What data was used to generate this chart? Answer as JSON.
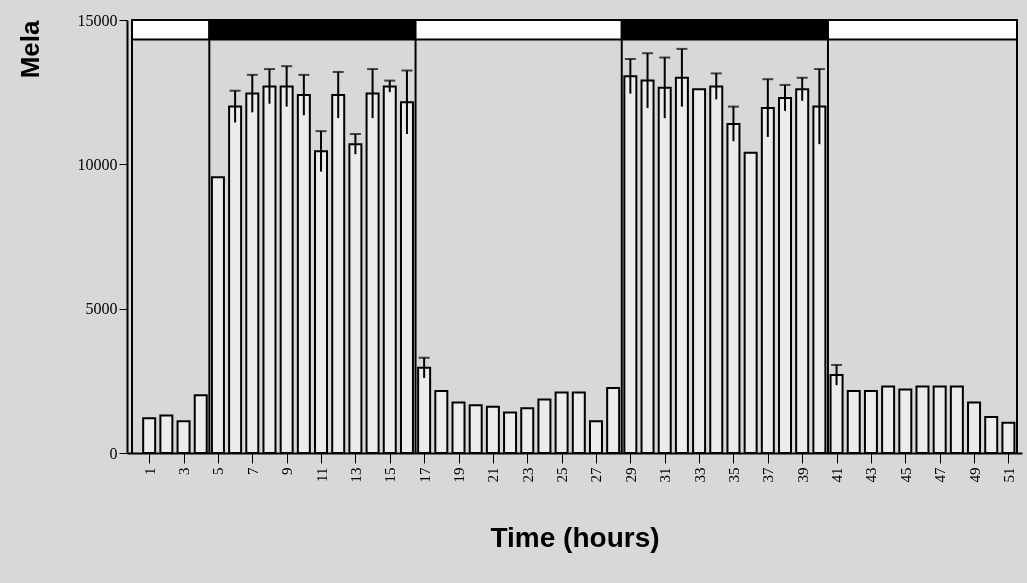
{
  "chart_data": {
    "type": "bar",
    "xlabel": "Time   (hours)",
    "ylabel": "Mela",
    "x": [
      1,
      2,
      3,
      4,
      5,
      6,
      7,
      8,
      9,
      10,
      11,
      12,
      13,
      14,
      15,
      16,
      17,
      18,
      19,
      20,
      21,
      22,
      23,
      24,
      25,
      26,
      27,
      28,
      29,
      30,
      31,
      32,
      33,
      34,
      35,
      36,
      37,
      38,
      39,
      40,
      41,
      42,
      43,
      44,
      45,
      46,
      47,
      48,
      49,
      50,
      51
    ],
    "values": [
      1200,
      1300,
      1100,
      2000,
      9550,
      12000,
      12450,
      12700,
      12700,
      12400,
      10450,
      12400,
      10700,
      12450,
      12700,
      12150,
      2950,
      2150,
      1750,
      1650,
      1600,
      1400,
      1550,
      1850,
      2100,
      2100,
      1100,
      2250,
      13050,
      12900,
      12650,
      13000,
      12600,
      12700,
      11400,
      10400,
      11950,
      12300,
      12600,
      12000,
      2700,
      2150,
      2150,
      2300,
      2200,
      2300,
      2300,
      2300,
      1750,
      1250,
      1050
    ],
    "errors": [
      null,
      null,
      null,
      null,
      null,
      550,
      650,
      600,
      700,
      700,
      700,
      800,
      350,
      850,
      200,
      1100,
      350,
      null,
      null,
      null,
      null,
      null,
      null,
      null,
      null,
      null,
      null,
      null,
      600,
      950,
      1050,
      1000,
      null,
      450,
      600,
      null,
      1000,
      450,
      400,
      1300,
      350,
      null,
      null,
      null,
      null,
      null,
      null,
      null,
      null,
      null,
      null
    ],
    "color": "#ececec",
    "xlim": [
      0,
      51.5
    ],
    "xticks": [
      1,
      3,
      5,
      7,
      9,
      11,
      13,
      15,
      17,
      19,
      21,
      23,
      25,
      27,
      29,
      31,
      33,
      35,
      37,
      39,
      41,
      43,
      45,
      47,
      49,
      51
    ],
    "ylim": [
      0,
      15000
    ],
    "yticks": [
      0,
      5000,
      10000,
      15000
    ],
    "bands": [
      {
        "axis": "x",
        "from": 0,
        "to": 4.5,
        "color": "#ffffff"
      },
      {
        "axis": "x",
        "from": 4.5,
        "to": 16.5,
        "color": "#000000"
      },
      {
        "axis": "x",
        "from": 16.5,
        "to": 28.5,
        "color": "#ffffff"
      },
      {
        "axis": "x",
        "from": 28.5,
        "to": 40.5,
        "color": "#000000"
      },
      {
        "axis": "x",
        "from": 40.5,
        "to": 51.5,
        "color": "#ffffff"
      }
    ],
    "grid": false
  }
}
